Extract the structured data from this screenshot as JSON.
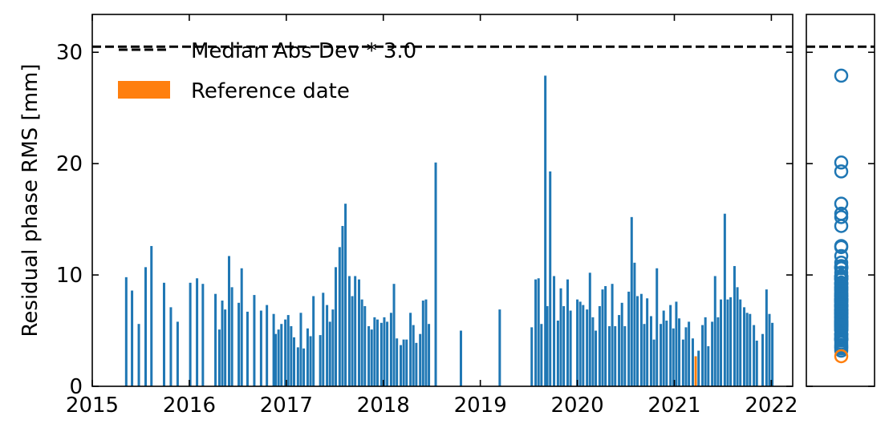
{
  "chart_data": {
    "type": "bar",
    "y_label": "Residual phase RMS [mm]",
    "x": [
      2015.35,
      2015.41,
      2015.48,
      2015.55,
      2015.61,
      2015.74,
      2015.81,
      2015.88,
      2016.01,
      2016.08,
      2016.14,
      2016.27,
      2016.31,
      2016.34,
      2016.37,
      2016.41,
      2016.44,
      2016.51,
      2016.54,
      2016.6,
      2016.67,
      2016.74,
      2016.8,
      2016.87,
      2016.89,
      2016.92,
      2016.95,
      2016.99,
      2017.02,
      2017.05,
      2017.08,
      2017.12,
      2017.15,
      2017.18,
      2017.22,
      2017.25,
      2017.28,
      2017.35,
      2017.38,
      2017.42,
      2017.45,
      2017.48,
      2017.51,
      2017.55,
      2017.58,
      2017.61,
      2017.65,
      2017.68,
      2017.71,
      2017.75,
      2017.78,
      2017.81,
      2017.85,
      2017.88,
      2017.91,
      2017.94,
      2017.98,
      2018.01,
      2018.04,
      2018.08,
      2018.11,
      2018.14,
      2018.18,
      2018.21,
      2018.24,
      2018.28,
      2018.31,
      2018.34,
      2018.38,
      2018.41,
      2018.44,
      2018.47,
      2018.54,
      2018.8,
      2019.2,
      2019.53,
      2019.57,
      2019.6,
      2019.63,
      2019.67,
      2019.69,
      2019.72,
      2019.76,
      2019.8,
      2019.83,
      2019.86,
      2019.9,
      2019.93,
      2020.0,
      2020.03,
      2020.06,
      2020.1,
      2020.13,
      2020.16,
      2020.19,
      2020.23,
      2020.26,
      2020.29,
      2020.33,
      2020.36,
      2020.39,
      2020.43,
      2020.46,
      2020.49,
      2020.53,
      2020.56,
      2020.59,
      2020.62,
      2020.66,
      2020.69,
      2020.72,
      2020.76,
      2020.79,
      2020.82,
      2020.86,
      2020.89,
      2020.92,
      2020.96,
      2020.99,
      2021.02,
      2021.05,
      2021.09,
      2021.12,
      2021.15,
      2021.19,
      2021.25,
      2021.29,
      2021.32,
      2021.35,
      2021.39,
      2021.42,
      2021.45,
      2021.48,
      2021.52,
      2021.55,
      2021.58,
      2021.62,
      2021.65,
      2021.68,
      2021.72,
      2021.75,
      2021.78,
      2021.82,
      2021.85,
      2021.91,
      2021.95,
      2021.98,
      2022.01
    ],
    "values": [
      9.8,
      8.6,
      5.6,
      10.7,
      12.6,
      9.3,
      7.1,
      5.8,
      9.3,
      9.7,
      9.2,
      8.3,
      5.1,
      7.7,
      6.9,
      11.7,
      8.9,
      7.5,
      10.6,
      6.7,
      8.2,
      6.8,
      7.3,
      6.5,
      4.7,
      5.1,
      5.6,
      6.0,
      6.4,
      5.4,
      4.4,
      3.5,
      6.6,
      3.4,
      5.2,
      4.5,
      8.1,
      4.6,
      8.4,
      7.3,
      5.8,
      6.9,
      10.7,
      12.5,
      14.4,
      16.4,
      9.9,
      8.1,
      9.9,
      9.6,
      7.8,
      7.2,
      5.4,
      5.1,
      6.2,
      6.0,
      5.7,
      6.2,
      5.8,
      6.6,
      9.2,
      4.3,
      3.7,
      4.2,
      4.2,
      6.6,
      5.5,
      3.9,
      4.7,
      7.7,
      7.8,
      5.6,
      20.1,
      5.0,
      6.9,
      5.3,
      9.6,
      9.7,
      5.6,
      27.9,
      7.2,
      19.3,
      9.9,
      5.9,
      8.8,
      7.2,
      9.6,
      6.8,
      7.8,
      7.6,
      7.3,
      6.9,
      10.2,
      6.2,
      5.0,
      7.2,
      8.7,
      9.0,
      5.4,
      9.2,
      5.4,
      6.4,
      7.5,
      5.4,
      8.5,
      15.2,
      11.1,
      8.1,
      8.3,
      5.6,
      7.9,
      6.3,
      4.2,
      10.6,
      5.6,
      6.8,
      5.9,
      7.3,
      5.2,
      7.6,
      6.1,
      4.2,
      5.3,
      5.8,
      4.3,
      3.2,
      5.5,
      6.2,
      3.6,
      5.8,
      9.9,
      6.2,
      7.8,
      15.5,
      7.8,
      8.0,
      10.8,
      8.9,
      7.8,
      7.1,
      6.6,
      6.5,
      5.5,
      4.1,
      4.7,
      8.7,
      6.5,
      5.7
    ],
    "color": "#1f77b4",
    "reference": {
      "name": "Reference date",
      "x": 2021.22,
      "value": 2.7,
      "color": "#ff7f0e"
    },
    "threshold": {
      "name": "Median Abs Dev * 3.0",
      "value": 30.5,
      "color": "#000000"
    },
    "xlim": [
      2015,
      2022.22
    ],
    "xticks": [
      2015,
      2016,
      2017,
      2018,
      2019,
      2020,
      2021,
      2022
    ],
    "ylim": [
      0,
      33.4
    ],
    "yticks": [
      0,
      10,
      20,
      30
    ]
  }
}
